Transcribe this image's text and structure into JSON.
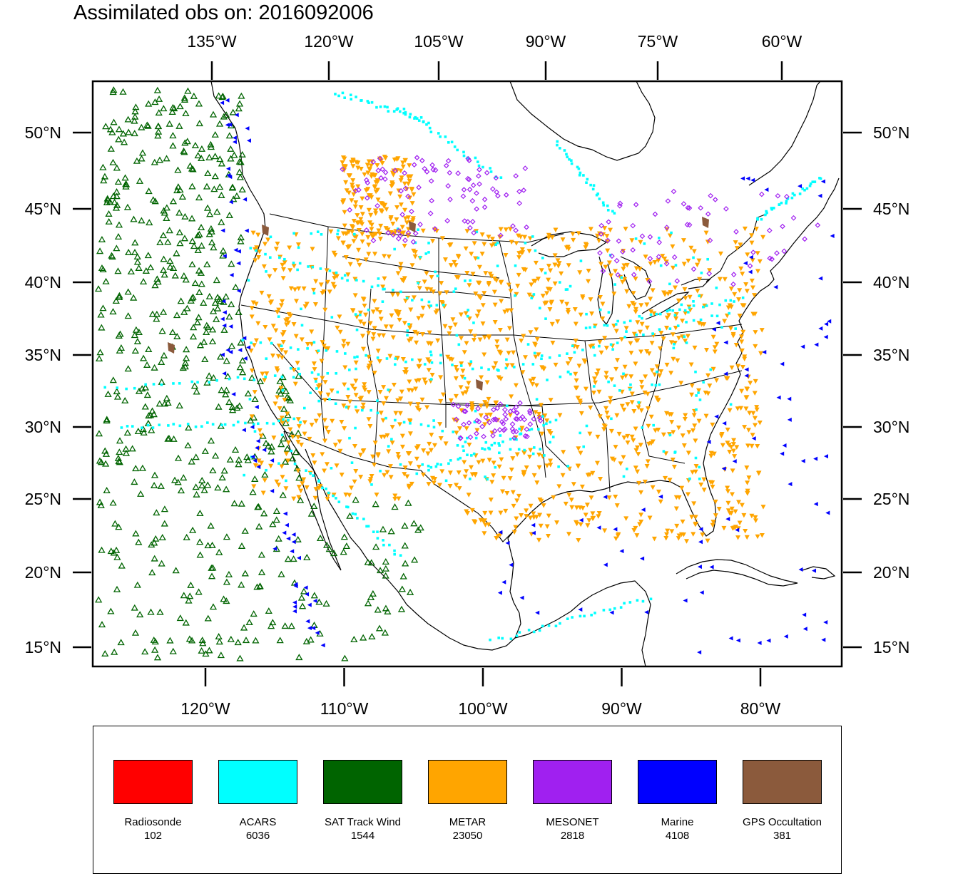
{
  "title": "Assimilated obs on: 2016092006",
  "top_axis_labels": [
    "135°W",
    "120°W",
    "105°W",
    "90°W",
    "75°W",
    "60°W"
  ],
  "bottom_axis_labels": [
    "120°W",
    "110°W",
    "100°W",
    "90°W",
    "80°W"
  ],
  "lat_axis_labels": [
    "50°N",
    "45°N",
    "40°N",
    "35°N",
    "30°N",
    "25°N",
    "20°N",
    "15°N"
  ],
  "bottom_axis_values": [
    -120,
    -110,
    -100,
    -90,
    -80
  ],
  "lat_axis_values": [
    50,
    45,
    40,
    35,
    30,
    25,
    20,
    15
  ],
  "legend": [
    {
      "name": "Radiosonde",
      "count": "102",
      "color": "#ff0000"
    },
    {
      "name": "ACARS",
      "count": "6036",
      "color": "#00ffff"
    },
    {
      "name": "SAT Track Wind",
      "count": "1544",
      "color": "#006400"
    },
    {
      "name": "METAR",
      "count": "23050",
      "color": "#ffa500"
    },
    {
      "name": "MESONET",
      "count": "2818",
      "color": "#a020f0"
    },
    {
      "name": "Marine",
      "count": "4108",
      "color": "#0000ff"
    },
    {
      "name": "GPS Occultation",
      "count": "381",
      "color": "#8b5a3c"
    }
  ]
}
